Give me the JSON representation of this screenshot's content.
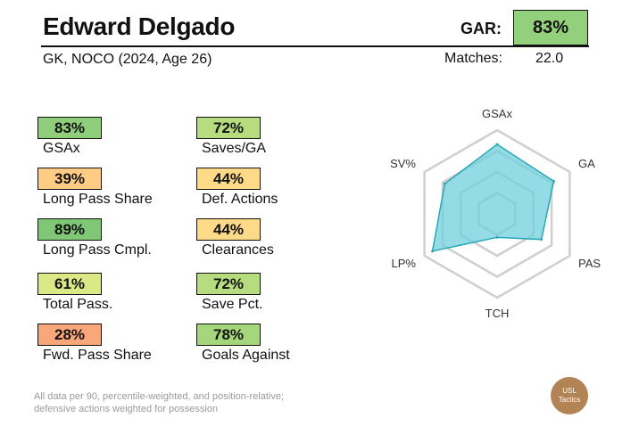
{
  "player": {
    "name": "Edward Delgado",
    "subtitle": "GK, NOCO (2024, Age 26)"
  },
  "gar": {
    "label": "GAR:",
    "value": "83%",
    "color": "#93d07c"
  },
  "matches": {
    "label": "Matches:",
    "value": "22.0"
  },
  "metrics": [
    {
      "value": "83%",
      "label": "GSAx",
      "color": "#8fce7a"
    },
    {
      "value": "72%",
      "label": "Saves/GA",
      "color": "#b6dc7f"
    },
    {
      "value": "39%",
      "label": "Long Pass Share",
      "color": "#fecc84"
    },
    {
      "value": "44%",
      "label": "Def. Actions",
      "color": "#fdda87"
    },
    {
      "value": "89%",
      "label": "Long Pass Cmpl.",
      "color": "#7fc676"
    },
    {
      "value": "44%",
      "label": "Clearances",
      "color": "#fdda87"
    },
    {
      "value": "61%",
      "label": "Total Pass.",
      "color": "#dbe886"
    },
    {
      "value": "72%",
      "label": "Save Pct.",
      "color": "#b6dc7f"
    },
    {
      "value": "28%",
      "label": "Fwd. Pass Share",
      "color": "#f9a77a"
    },
    {
      "value": "78%",
      "label": "Goals Against",
      "color": "#a6d67c"
    }
  ],
  "chart_data": {
    "type": "radar",
    "axes": [
      "GSAx",
      "GA",
      "PAS",
      "TCH",
      "LP%",
      "SV%"
    ],
    "values": [
      83,
      78,
      61,
      28,
      89,
      72
    ],
    "range": [
      0,
      100
    ],
    "fill_color": "#6fd0dc",
    "stroke_color": "#2aa7b8"
  },
  "footer": {
    "line1": "All data per 90, percentile-weighted, and position-relative;",
    "line2": "defensive actions weighted for possession"
  },
  "logo": {
    "line1": "USL",
    "line2": "Tactics",
    "color": "#b28355"
  }
}
